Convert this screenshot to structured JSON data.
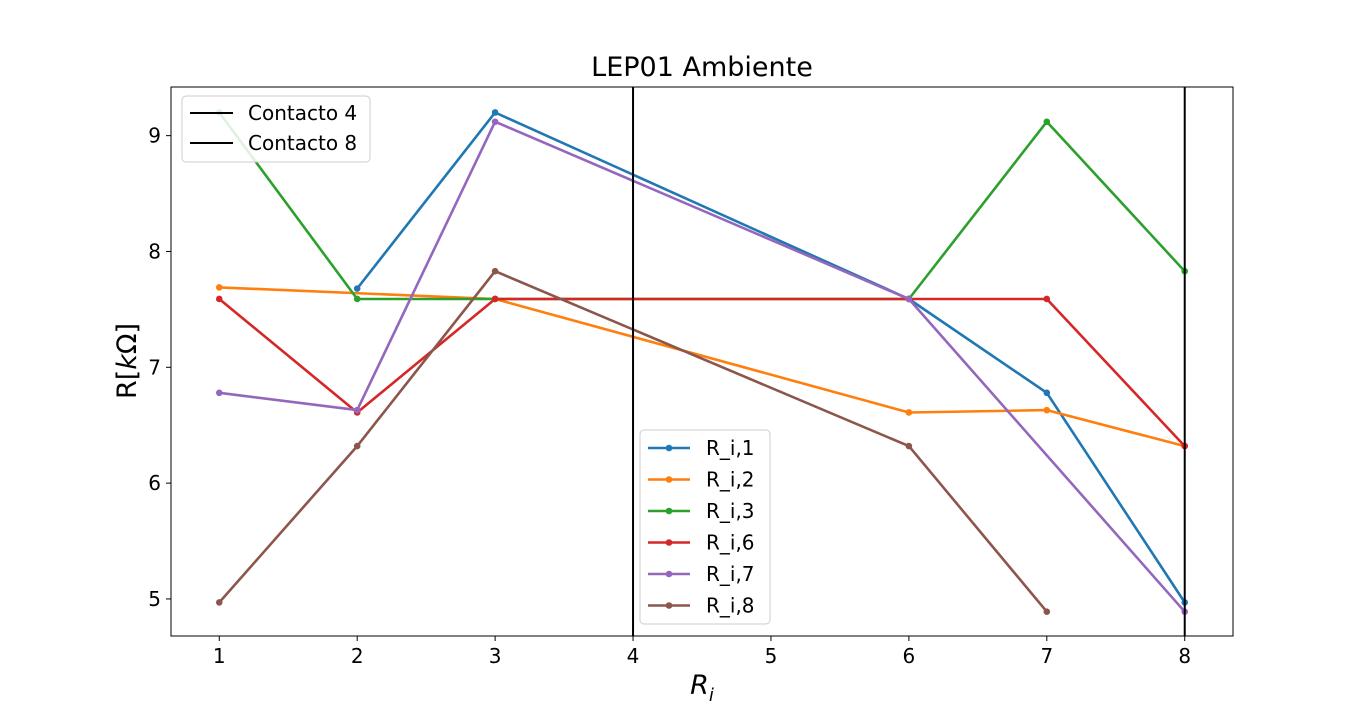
{
  "chart_data": {
    "type": "line",
    "title": "LEP01 Ambiente",
    "xlabel_base": "R",
    "xlabel_sub": "i",
    "ylabel_prefix": "R[",
    "ylabel_italic": "k",
    "ylabel_suffix": "Ω]",
    "xlim": [
      0.65,
      8.35
    ],
    "ylim": [
      4.68,
      9.42
    ],
    "xticks": [
      1,
      2,
      3,
      4,
      5,
      6,
      7,
      8
    ],
    "yticks": [
      5,
      6,
      7,
      8,
      9
    ],
    "grid": false,
    "legend_location": "lower-center",
    "series": [
      {
        "name": "R_i,1",
        "color": "#1f77b4",
        "points": [
          [
            2,
            7.68
          ],
          [
            3,
            9.2
          ],
          [
            6,
            7.59
          ],
          [
            7,
            6.78
          ],
          [
            8,
            4.97
          ]
        ]
      },
      {
        "name": "R_i,2",
        "color": "#ff7f0e",
        "points": [
          [
            1,
            7.69
          ],
          [
            3,
            7.59
          ],
          [
            6,
            6.61
          ],
          [
            7,
            6.63
          ],
          [
            8,
            6.32
          ]
        ]
      },
      {
        "name": "R_i,3",
        "color": "#2ca02c",
        "points": [
          [
            1,
            9.2
          ],
          [
            2,
            7.59
          ],
          [
            3,
            7.59
          ],
          [
            6,
            7.59
          ],
          [
            7,
            9.12
          ],
          [
            8,
            7.83
          ]
        ]
      },
      {
        "name": "R_i,6",
        "color": "#d62728",
        "points": [
          [
            1,
            7.59
          ],
          [
            2,
            6.61
          ],
          [
            3,
            7.59
          ],
          [
            6,
            7.59
          ],
          [
            7,
            7.59
          ],
          [
            8,
            6.32
          ]
        ]
      },
      {
        "name": "R_i,7",
        "color": "#9467bd",
        "points": [
          [
            1,
            6.78
          ],
          [
            2,
            6.63
          ],
          [
            3,
            9.12
          ],
          [
            6,
            7.59
          ],
          [
            8,
            4.89
          ]
        ]
      },
      {
        "name": "R_i,8",
        "color": "#8c564b",
        "points": [
          [
            1,
            4.97
          ],
          [
            2,
            6.32
          ],
          [
            3,
            7.83
          ],
          [
            6,
            6.32
          ],
          [
            7,
            4.89
          ]
        ]
      }
    ],
    "vlines": [
      {
        "name": "Contacto 4",
        "x": 4,
        "color": "#000000"
      },
      {
        "name": "Contacto 8",
        "x": 8,
        "color": "#000000"
      }
    ],
    "vline_legend_location": "upper-left"
  }
}
